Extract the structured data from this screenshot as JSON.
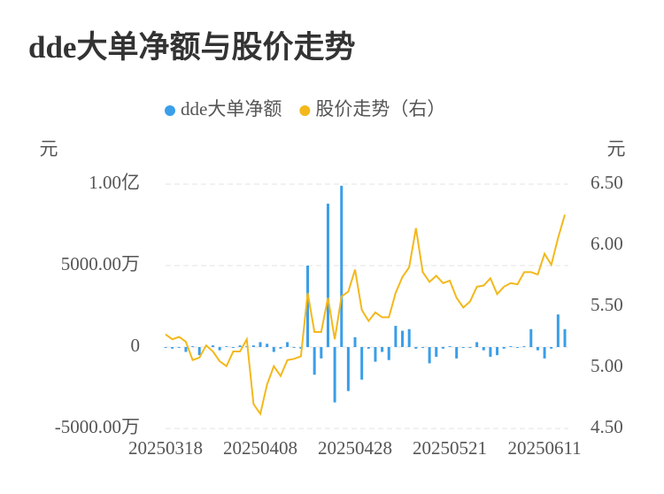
{
  "chart_data": {
    "type": "bar_line",
    "title": "dde大单净额与股价走势",
    "y_label": "元",
    "y2_label": "元",
    "categories": [
      "20250318",
      null,
      null,
      null,
      null,
      null,
      null,
      null,
      null,
      null,
      null,
      null,
      null,
      null,
      "20250408",
      null,
      null,
      null,
      null,
      null,
      null,
      null,
      null,
      null,
      null,
      null,
      null,
      null,
      "20250428",
      null,
      null,
      null,
      null,
      null,
      null,
      null,
      null,
      null,
      null,
      null,
      null,
      null,
      "20250521",
      null,
      null,
      null,
      null,
      null,
      null,
      null,
      null,
      null,
      null,
      null,
      null,
      null,
      "20250611",
      null,
      null,
      null
    ],
    "series": [
      {
        "name": "dde大单净额",
        "type": "bar",
        "color": "#3a9ee8",
        "axis": "y",
        "values": [
          -50,
          -100,
          -50,
          -300,
          50,
          -500,
          50,
          100,
          -200,
          50,
          -50,
          100,
          50,
          100,
          300,
          200,
          -300,
          -100,
          300,
          -50,
          -100,
          5000,
          -1700,
          -700,
          8800,
          -3400,
          9900,
          -2700,
          600,
          -2000,
          -100,
          -900,
          -300,
          -800,
          1300,
          1000,
          1100,
          -100,
          -50,
          -1000,
          -600,
          -100,
          50,
          -700,
          -50,
          -50,
          300,
          -200,
          -600,
          -500,
          -100,
          50,
          -50,
          50,
          1100,
          -200,
          -700,
          -100,
          2000,
          1100
        ]
      },
      {
        "name": "股价走势（右）",
        "type": "line",
        "color": "#f3b81c",
        "axis": "y2",
        "values": [
          5.27,
          5.23,
          5.25,
          5.21,
          5.06,
          5.08,
          5.18,
          5.13,
          5.05,
          5.01,
          5.13,
          5.13,
          5.23,
          4.7,
          4.62,
          4.86,
          5.01,
          4.93,
          5.06,
          5.07,
          5.09,
          5.61,
          5.29,
          5.29,
          5.57,
          5.23,
          5.58,
          5.62,
          5.8,
          5.47,
          5.38,
          5.45,
          5.41,
          5.41,
          5.61,
          5.74,
          5.82,
          6.14,
          5.78,
          5.7,
          5.75,
          5.69,
          5.71,
          5.57,
          5.49,
          5.54,
          5.66,
          5.67,
          5.73,
          5.6,
          5.66,
          5.69,
          5.68,
          5.78,
          5.78,
          5.76,
          5.93,
          5.84,
          6.06,
          6.25
        ]
      }
    ],
    "ylim": [
      -5000,
      10000
    ],
    "yticks": [
      {
        "value": -5000,
        "label": "-5000.00万"
      },
      0,
      {
        "value": 5000,
        "label": "5000.00万"
      },
      {
        "value": 10000,
        "label": "1.00亿"
      }
    ],
    "y2lim": [
      4.5,
      6.5
    ],
    "y2ticks": [
      {
        "value": 4.5,
        "label": "4.50"
      },
      {
        "value": 5.0,
        "label": "5.00"
      },
      {
        "value": 5.5,
        "label": "5.50"
      },
      {
        "value": 6.0,
        "label": "6.00"
      },
      {
        "value": 6.5,
        "label": "6.50"
      }
    ],
    "grid": true,
    "legend": "top"
  }
}
